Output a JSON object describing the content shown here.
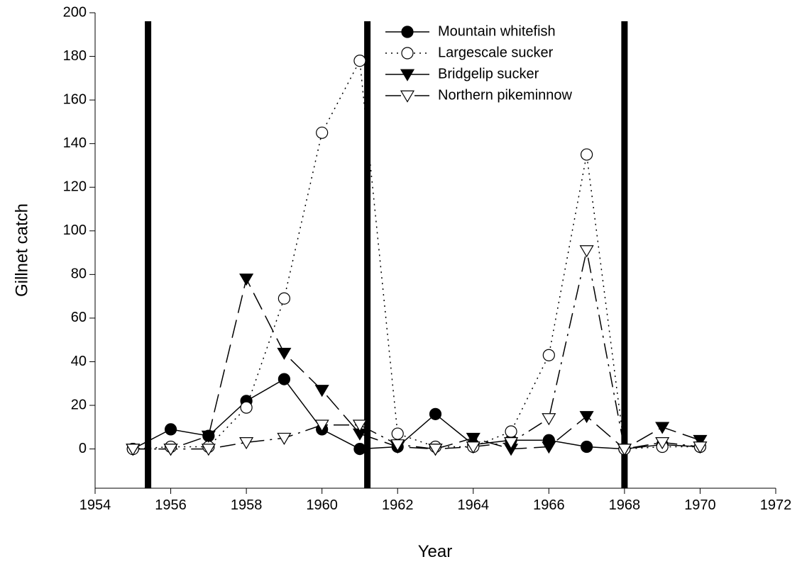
{
  "chart_data": {
    "type": "line",
    "xlabel": "Year",
    "ylabel": "Gillnet catch",
    "x": [
      1955,
      1956,
      1957,
      1958,
      1959,
      1960,
      1961,
      1962,
      1963,
      1964,
      1965,
      1966,
      1967,
      1968,
      1969,
      1970
    ],
    "series": [
      {
        "name": "Mountain whitefish",
        "color": "#000000",
        "line_style": "solid",
        "marker": "circle",
        "marker_fill": "filled",
        "values": [
          0,
          9,
          6,
          22,
          32,
          9,
          0,
          1,
          16,
          2,
          4,
          4,
          1,
          0,
          2,
          1
        ]
      },
      {
        "name": "Largescale sucker",
        "color": "#000000",
        "line_style": "dotted",
        "marker": "circle",
        "marker_fill": "open",
        "values": [
          0,
          1,
          1,
          19,
          69,
          145,
          178,
          7,
          1,
          1,
          8,
          43,
          135,
          0,
          1,
          1
        ]
      },
      {
        "name": "Bridgelip sucker",
        "color": "#000000",
        "line_style": "dashed",
        "marker": "triangle-down",
        "marker_fill": "filled",
        "values": [
          0,
          0,
          6,
          78,
          44,
          27,
          7,
          1,
          0,
          5,
          0,
          1,
          15,
          0,
          10,
          4
        ]
      },
      {
        "name": "Northern pikeminnow",
        "color": "#000000",
        "line_style": "dashdot",
        "marker": "triangle-down",
        "marker_fill": "open",
        "values": [
          0,
          0,
          0,
          3,
          5,
          11,
          11,
          2,
          0,
          1,
          3,
          14,
          91,
          0,
          3,
          1
        ]
      }
    ],
    "vlines": [
      1955.4,
      1961.2,
      1968
    ],
    "xlim": [
      1954,
      1972
    ],
    "xticks": [
      1954,
      1956,
      1958,
      1960,
      1962,
      1964,
      1966,
      1968,
      1970,
      1972
    ],
    "ylim": [
      -18,
      200
    ],
    "yticks": [
      0,
      20,
      40,
      60,
      80,
      100,
      120,
      140,
      160,
      180,
      200
    ],
    "grid": false,
    "legend": "upper center"
  }
}
